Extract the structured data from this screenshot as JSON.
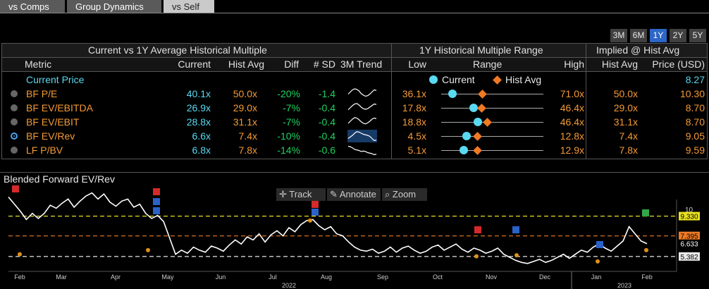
{
  "tabs": [
    "vs Comps",
    "Group Dynamics",
    "vs Self"
  ],
  "periods": [
    "3M",
    "6M",
    "1Y",
    "2Y",
    "5Y"
  ],
  "active_period": "1Y",
  "table": {
    "group_headers": [
      "Current vs 1Y Average Historical Multiple",
      "1Y Historical Multiple Range",
      "Implied @ Hist Avg"
    ],
    "col_headers": [
      "Metric",
      "Current",
      "Hist Avg",
      "Diff",
      "# SD",
      "3M Trend",
      "Low",
      "Range",
      "High",
      "Hist Avg",
      "Price (USD)"
    ],
    "legend": {
      "current": "Current",
      "hist_avg": "Hist Avg"
    },
    "current_price": {
      "label": "Current Price",
      "value": "8.27"
    },
    "rows": [
      {
        "metric": "BF P/E",
        "current": "40.1x",
        "hist_avg": "50.0x",
        "diff": "-20%",
        "sd": "-1.4",
        "low": "36.1x",
        "high": "71.0x",
        "imp_avg": "50.0x",
        "price": "10.30",
        "cur_frac": 0.11,
        "avg_frac": 0.4,
        "selected": false,
        "trend": [
          0.5,
          0.7,
          0.9,
          1.0,
          0.95,
          0.8,
          0.55,
          0.4,
          0.3,
          0.35,
          0.5,
          0.7,
          0.9,
          0.85
        ]
      },
      {
        "metric": "BF EV/EBITDA",
        "current": "26.9x",
        "hist_avg": "29.0x",
        "diff": "-7%",
        "sd": "-0.4",
        "low": "17.8x",
        "high": "46.4x",
        "imp_avg": "29.0x",
        "price": "8.70",
        "cur_frac": 0.32,
        "avg_frac": 0.39,
        "selected": false,
        "trend": [
          0.35,
          0.55,
          0.75,
          0.9,
          0.95,
          0.8,
          0.6,
          0.45,
          0.4,
          0.45,
          0.6,
          0.75,
          0.9,
          0.85
        ]
      },
      {
        "metric": "BF EV/EBIT",
        "current": "28.8x",
        "hist_avg": "31.1x",
        "diff": "-7%",
        "sd": "-0.4",
        "low": "18.8x",
        "high": "46.4x",
        "imp_avg": "31.1x",
        "price": "8.70",
        "cur_frac": 0.36,
        "avg_frac": 0.45,
        "selected": false,
        "trend": [
          0.4,
          0.6,
          0.8,
          0.95,
          0.9,
          0.75,
          0.55,
          0.4,
          0.35,
          0.45,
          0.6,
          0.8,
          0.9,
          0.85
        ]
      },
      {
        "metric": "BF EV/Rev",
        "current": "6.6x",
        "hist_avg": "7.4x",
        "diff": "-10%",
        "sd": "-0.4",
        "low": "4.5x",
        "high": "12.8x",
        "imp_avg": "7.4x",
        "price": "9.05",
        "cur_frac": 0.25,
        "avg_frac": 0.35,
        "selected": true,
        "trend": [
          0.3,
          0.45,
          0.6,
          0.8,
          0.95,
          0.9,
          0.8,
          0.7,
          0.65,
          0.6,
          0.5,
          0.3,
          0.1,
          0.15
        ]
      },
      {
        "metric": "LF P/BV",
        "current": "6.8x",
        "hist_avg": "7.8x",
        "diff": "-14%",
        "sd": "-0.6",
        "low": "5.1x",
        "high": "12.9x",
        "imp_avg": "7.8x",
        "price": "9.59",
        "cur_frac": 0.22,
        "avg_frac": 0.35,
        "selected": false,
        "trend": [
          0.9,
          0.85,
          0.75,
          0.6,
          0.55,
          0.5,
          0.4,
          0.45,
          0.4,
          0.3,
          0.25,
          0.2,
          0.1,
          0.15
        ]
      }
    ]
  },
  "chart": {
    "title": "Blended Forward EV/Rev",
    "toolbar": [
      "Track",
      "Annotate",
      "Zoom"
    ],
    "months": [
      "Feb",
      "Mar",
      "Apr",
      "May",
      "Jun",
      "Jul",
      "Aug",
      "Sep",
      "Oct",
      "Nov",
      "Dec",
      "Jan",
      "Feb"
    ],
    "years": [
      "2022",
      "2023"
    ],
    "y_labels": {
      "upper": "9.330",
      "current": "6.633",
      "lower": "5.382",
      "top": "10",
      "mid": "7.395"
    },
    "colors": {
      "upper": "#e8e021",
      "avg": "#f07a24",
      "lower": "#e8e8e8",
      "line": "#ffffff"
    }
  }
}
